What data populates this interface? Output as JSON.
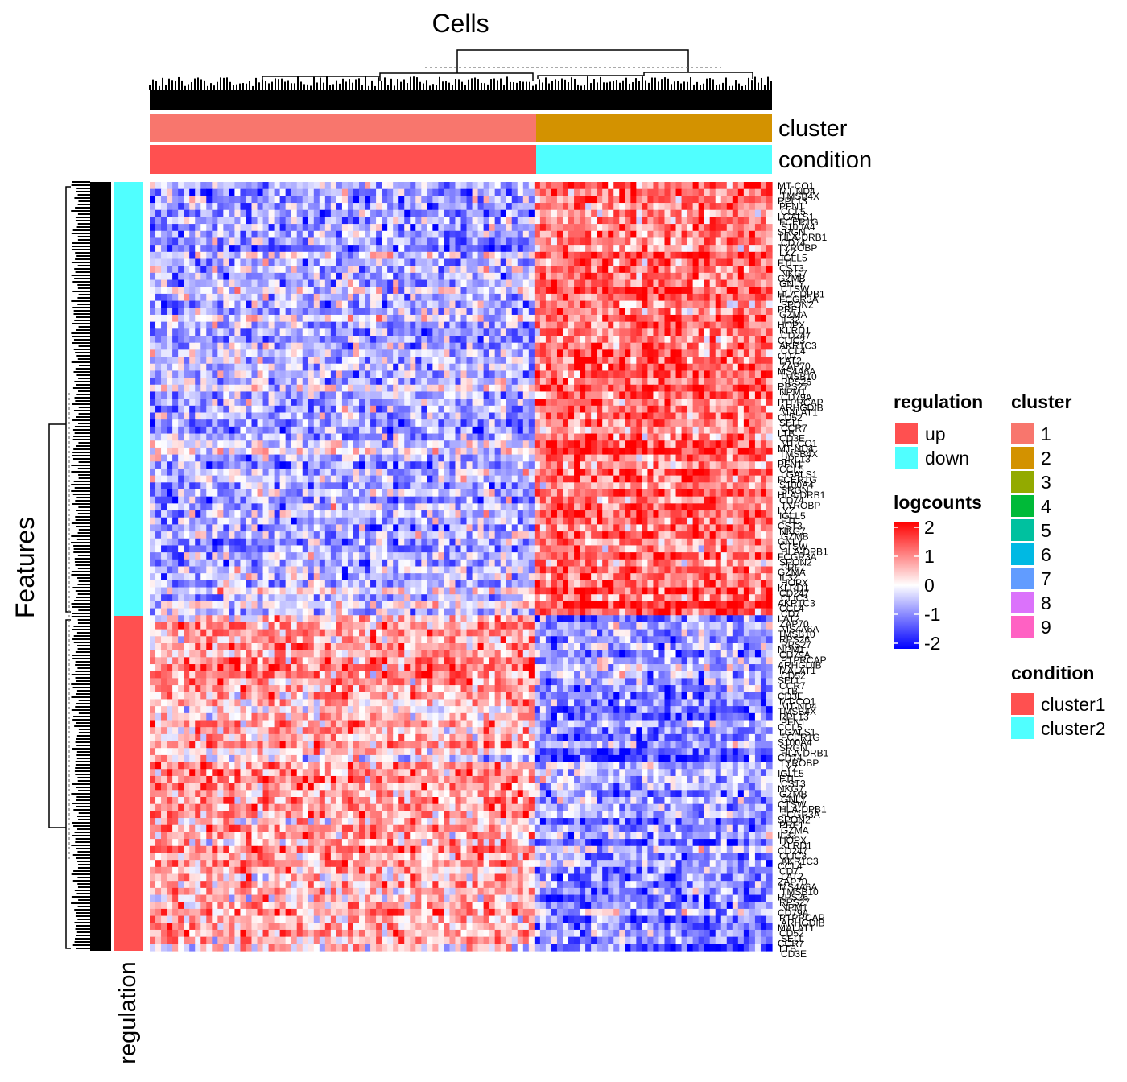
{
  "chart_data": {
    "type": "heatmap",
    "column_title": "Cells",
    "row_title": "Features",
    "row_annotation_label": "regulation",
    "column_annotations": [
      {
        "name": "cluster",
        "segments": [
          {
            "value": "1",
            "color": "#F8766D"
          },
          {
            "value": "2",
            "color": "#D39200"
          }
        ]
      },
      {
        "name": "condition",
        "segments": [
          {
            "value": "cluster1",
            "color": "#FF5050"
          },
          {
            "value": "cluster2",
            "color": "#50FFFF"
          }
        ]
      }
    ],
    "row_annotation": {
      "segments": [
        {
          "value": "down",
          "color": "#50FFFF"
        },
        {
          "value": "up",
          "color": "#FF5050"
        }
      ]
    },
    "color_scale": {
      "name": "logcounts",
      "breaks": [
        2,
        1,
        0,
        -1,
        -2
      ],
      "colors": [
        "#FF0000",
        "#FFFFFF",
        "#0000FF"
      ]
    },
    "pattern": {
      "column_groups": [
        "cluster1",
        "cluster2"
      ],
      "row_groups": [
        "down",
        "up"
      ],
      "mean_logcounts": [
        [
          -0.6,
          1.1
        ],
        [
          0.6,
          -0.9
        ]
      ]
    },
    "legends": [
      {
        "title": "regulation",
        "items": [
          {
            "label": "up",
            "color": "#FF5050"
          },
          {
            "label": "down",
            "color": "#50FFFF"
          }
        ]
      },
      {
        "title": "cluster",
        "items": [
          {
            "label": "1",
            "color": "#F8766D"
          },
          {
            "label": "2",
            "color": "#D39200"
          },
          {
            "label": "3",
            "color": "#93AA00"
          },
          {
            "label": "4",
            "color": "#00BA38"
          },
          {
            "label": "5",
            "color": "#00C19F"
          },
          {
            "label": "6",
            "color": "#00B9E3"
          },
          {
            "label": "7",
            "color": "#619CFF"
          },
          {
            "label": "8",
            "color": "#DB72FB"
          },
          {
            "label": "9",
            "color": "#FF61C3"
          }
        ]
      },
      {
        "title": "condition",
        "items": [
          {
            "label": "cluster1",
            "color": "#FF5050"
          },
          {
            "label": "cluster2",
            "color": "#50FFFF"
          }
        ]
      }
    ],
    "gene_labels": [
      "MT-CO1",
      "MT-ND4",
      "TMSB4X",
      "RPL13",
      "PFN1",
      "CCL5",
      "LGALS1",
      "FCER1G",
      "S100A4",
      "SRGN",
      "HLA-DRB1",
      "CD74",
      "TYROBP",
      "LYZ",
      "IGLL5",
      "FTL",
      "CST3",
      "NKG7",
      "GZMB",
      "GNLY",
      "CTSW",
      "HLA-DPB1",
      "FCGR3A",
      "SPON2",
      "PRF1",
      "GZMA",
      "IL32",
      "HOPX",
      "KLRD1",
      "CD247",
      "CLIC3",
      "AKR1C3",
      "CCL4",
      "CD7",
      "LAT2",
      "ZAP70",
      "MS4A6A",
      "TMSB10",
      "RPS26",
      "RPS27",
      "NPM1",
      "CD79A",
      "PTPRCAP",
      "ARHGDIB",
      "MALAT1",
      "CD52",
      "SELL",
      "CCR7",
      "LTB",
      "CD3E"
    ]
  }
}
